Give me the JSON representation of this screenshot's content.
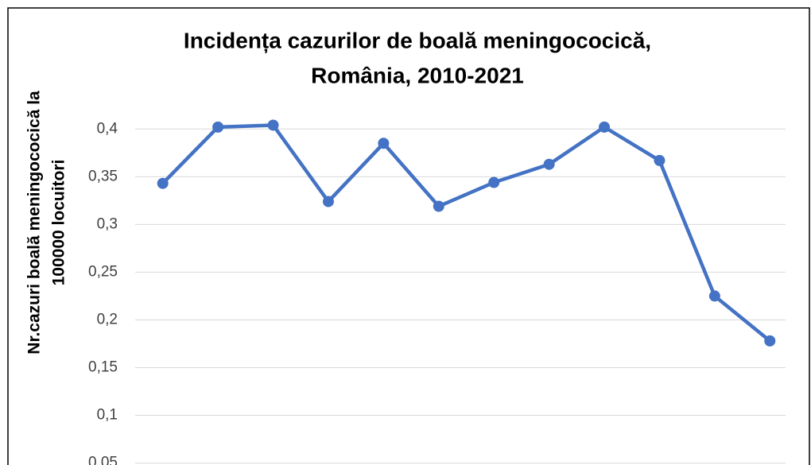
{
  "chart_data": {
    "type": "line",
    "title": [
      "Incidența cazurilor de boală meningococică,",
      "România, 2010-2021"
    ],
    "ylabel": [
      "Nr.cazuri  boală meningococică la",
      "100000 locuitori"
    ],
    "categories": [
      null,
      null,
      null,
      null,
      null,
      null,
      null,
      null,
      null,
      null,
      null,
      null
    ],
    "series": [
      {
        "name": null,
        "color": "#4472c4",
        "values": [
          0.343,
          0.402,
          0.404,
          0.324,
          0.385,
          0.319,
          0.344,
          0.363,
          0.402,
          0.367,
          0.225,
          0.178
        ]
      }
    ],
    "ylim": [
      0.048,
      0.476
    ],
    "yticks": [
      {
        "value": 0.05,
        "label": "0,05"
      },
      {
        "value": 0.1,
        "label": "0,1"
      },
      {
        "value": 0.15,
        "label": "0,15"
      },
      {
        "value": 0.2,
        "label": "0,2"
      },
      {
        "value": 0.25,
        "label": "0,25"
      },
      {
        "value": 0.3,
        "label": "0,3"
      },
      {
        "value": 0.35,
        "label": "0,35"
      },
      {
        "value": 0.4,
        "label": "0,4"
      }
    ],
    "grid": true
  }
}
